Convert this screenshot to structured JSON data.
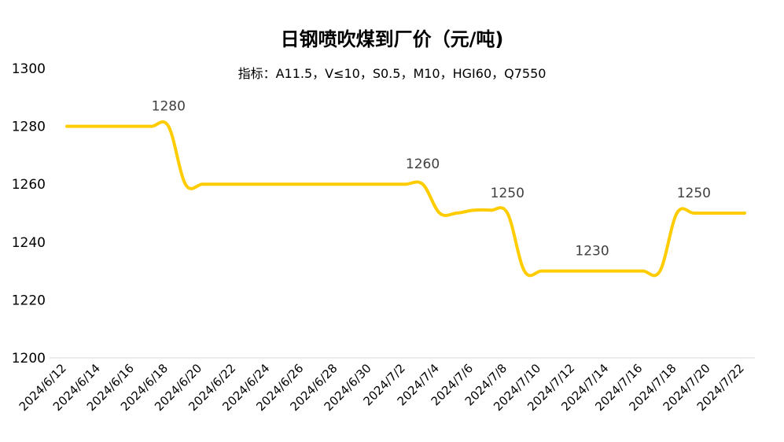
{
  "chart_data": {
    "type": "line",
    "title": "日钢喷吹煤到厂价（元/吨)",
    "subtitle": "指标：A11.5，V≤10，S0.5，M10，HGI60，Q7550",
    "xlabel": "",
    "ylabel": "",
    "ylim": [
      1200,
      1300
    ],
    "yticks": [
      1200,
      1220,
      1240,
      1260,
      1280,
      1300
    ],
    "grid": false,
    "legend": "none",
    "line_color": "#FFCC00",
    "x": [
      "2024/6/12",
      "2024/6/13",
      "2024/6/14",
      "2024/6/15",
      "2024/6/16",
      "2024/6/17",
      "2024/6/18",
      "2024/6/19",
      "2024/6/20",
      "2024/6/21",
      "2024/6/22",
      "2024/6/23",
      "2024/6/24",
      "2024/6/25",
      "2024/6/26",
      "2024/6/27",
      "2024/6/28",
      "2024/6/29",
      "2024/6/30",
      "2024/7/1",
      "2024/7/2",
      "2024/7/3",
      "2024/7/4",
      "2024/7/5",
      "2024/7/6",
      "2024/7/7",
      "2024/7/8",
      "2024/7/9",
      "2024/7/10",
      "2024/7/11",
      "2024/7/12",
      "2024/7/13",
      "2024/7/14",
      "2024/7/15",
      "2024/7/16",
      "2024/7/17",
      "2024/7/18",
      "2024/7/19",
      "2024/7/20",
      "2024/7/21",
      "2024/7/22"
    ],
    "x_tick_labels": [
      "2024/6/12",
      "2024/6/14",
      "2024/6/16",
      "2024/6/18",
      "2024/6/20",
      "2024/6/22",
      "2024/6/24",
      "2024/6/26",
      "2024/6/28",
      "2024/6/30",
      "2024/7/2",
      "2024/7/4",
      "2024/7/6",
      "2024/7/8",
      "2024/7/10",
      "2024/7/12",
      "2024/7/14",
      "2024/7/16",
      "2024/7/18",
      "2024/7/20",
      "2024/7/22"
    ],
    "series": [
      {
        "values": [
          1280,
          1280,
          1280,
          1280,
          1280,
          1280,
          1280,
          1260,
          1260,
          1260,
          1260,
          1260,
          1260,
          1260,
          1260,
          1260,
          1260,
          1260,
          1260,
          1260,
          1260,
          1260,
          1250,
          1250,
          1251,
          1251,
          1250,
          1230,
          1230,
          1230,
          1230,
          1230,
          1230,
          1230,
          1230,
          1230,
          1250,
          1250,
          1250,
          1250,
          1250
        ]
      }
    ],
    "annotations": [
      {
        "x": "2024/6/18",
        "text": "1280"
      },
      {
        "x": "2024/7/3",
        "text": "1260"
      },
      {
        "x": "2024/7/8",
        "text": "1250"
      },
      {
        "x": "2024/7/13",
        "text": "1230"
      },
      {
        "x": "2024/7/19",
        "text": "1250"
      }
    ]
  }
}
